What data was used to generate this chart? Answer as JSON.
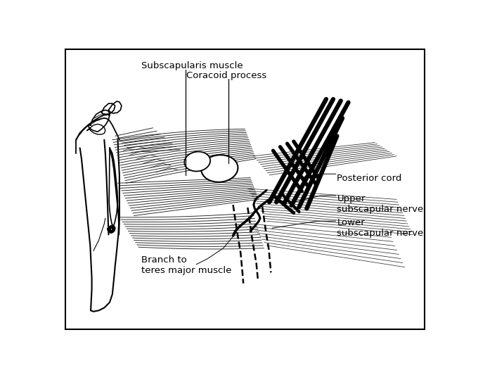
{
  "bg_color": "#ffffff",
  "line_color": "#000000",
  "fontsize": 9.5,
  "labels": {
    "subscapularis_muscle": "Subscapularis muscle",
    "coracoid_process": "Coracoid process",
    "posterior_cord": "Posterior cord",
    "upper_subscapular": "Upper\nsubscapular nerve",
    "lower_subscapular": "Lower\nsubscapular nerve",
    "branch_teres": "Branch to\nteres major muscle"
  },
  "posterior_cord_lines": [
    [
      0.565,
      0.87,
      0.685,
      0.99
    ],
    [
      0.575,
      0.855,
      0.695,
      0.985
    ],
    [
      0.59,
      0.835,
      0.705,
      0.975
    ],
    [
      0.605,
      0.815,
      0.715,
      0.965
    ],
    [
      0.6,
      0.795,
      0.705,
      0.945
    ],
    [
      0.61,
      0.775,
      0.71,
      0.935
    ]
  ],
  "cross_lines": [
    [
      0.575,
      0.855,
      0.62,
      0.785
    ],
    [
      0.59,
      0.87,
      0.635,
      0.8
    ],
    [
      0.605,
      0.885,
      0.648,
      0.814
    ],
    [
      0.62,
      0.9,
      0.663,
      0.826
    ]
  ]
}
